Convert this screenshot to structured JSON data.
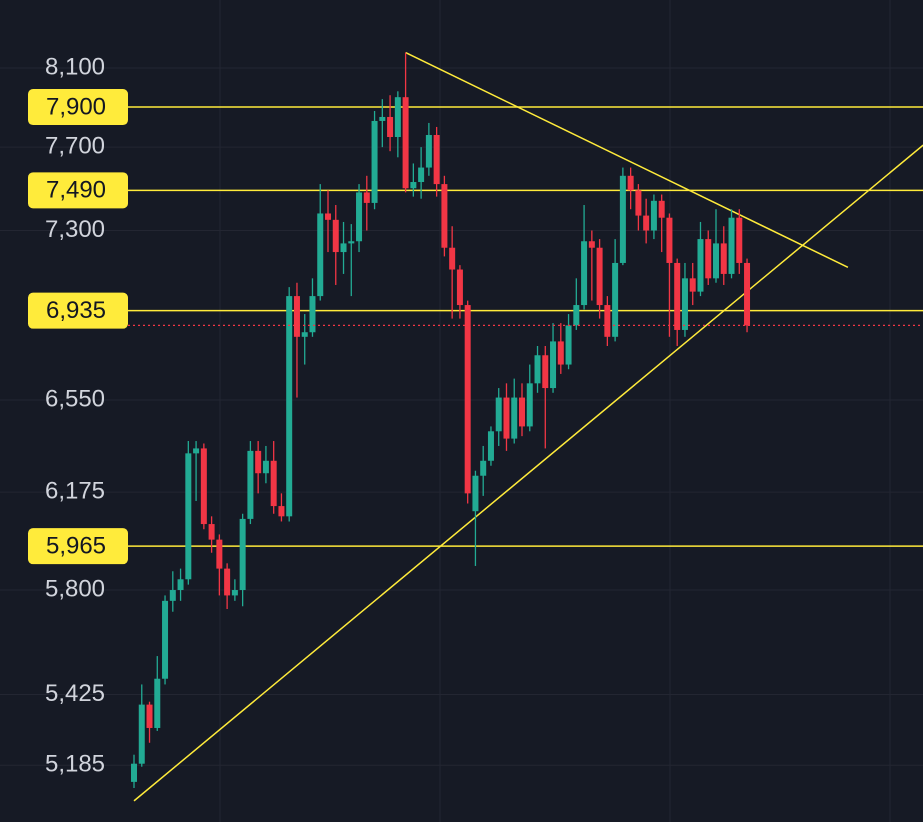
{
  "chart_data": {
    "type": "candlestick",
    "log_scale": true,
    "ylim": [
      5000,
      8460
    ],
    "yticks": [
      {
        "value": 8100,
        "label": "8,100"
      },
      {
        "value": 7700,
        "label": "7,700"
      },
      {
        "value": 7300,
        "label": "7,300"
      },
      {
        "value": 6550,
        "label": "6,550"
      },
      {
        "value": 6175,
        "label": "6,175"
      },
      {
        "value": 5800,
        "label": "5,800"
      },
      {
        "value": 5425,
        "label": "5,425"
      },
      {
        "value": 5185,
        "label": "5,185"
      }
    ],
    "grid": true,
    "up_color": "#22ab94",
    "down_color": "#f23645",
    "level_color": "#ffeb3b",
    "levels": [
      {
        "value": 7900,
        "label": "7,900"
      },
      {
        "value": 7490,
        "label": "7,490"
      },
      {
        "value": 6935,
        "label": "6,935"
      },
      {
        "value": 5965,
        "label": "5,965"
      }
    ],
    "trendlines": [
      {
        "x": [
          35,
          92
        ],
        "y": [
          8180,
          7130
        ]
      },
      {
        "x": [
          0,
          101.7
        ],
        "y": [
          5068,
          7710
        ]
      }
    ],
    "open": [
      5130,
      5190,
      5390,
      5310,
      5480,
      5760,
      5800,
      5840,
      6330,
      6350,
      6050,
      5990,
      5880,
      5780,
      5800,
      6070,
      6340,
      6250,
      6300,
      6120,
      6080,
      7000,
      6820,
      6840,
      7000,
      7380,
      7350,
      7200,
      7240,
      7250,
      7480,
      7430,
      7830,
      7850,
      7750,
      7950,
      7500,
      7530,
      7600,
      7760,
      7520,
      7220,
      7120,
      6960,
      6100,
      6240,
      6300,
      6420,
      6560,
      6390,
      6560,
      6440,
      6620,
      6740,
      6600,
      6800,
      6700,
      6870,
      6960,
      7250,
      7220,
      6960,
      6820,
      7150,
      7560,
      7490,
      7370,
      7300,
      7440,
      7360,
      7150,
      6850,
      7080,
      7020,
      7260,
      7080,
      7240,
      7100,
      7360,
      7150
    ],
    "high": [
      5220,
      5460,
      5400,
      5560,
      5780,
      5870,
      5880,
      6380,
      6380,
      6370,
      6080,
      6010,
      5900,
      5840,
      6090,
      6380,
      6380,
      6360,
      6380,
      6170,
      7040,
      7060,
      6920,
      7080,
      7520,
      7490,
      7420,
      7340,
      7330,
      7520,
      7560,
      7880,
      7940,
      7960,
      7980,
      8180,
      7620,
      7700,
      7820,
      7800,
      7560,
      7320,
      7140,
      6980,
      6260,
      6360,
      6440,
      6600,
      6620,
      6640,
      6620,
      6700,
      6780,
      6780,
      6880,
      6880,
      6920,
      7080,
      7420,
      7300,
      7260,
      7000,
      7260,
      7600,
      7600,
      7520,
      7450,
      7470,
      7470,
      7380,
      7170,
      7150,
      7150,
      7340,
      7300,
      7400,
      7320,
      7400,
      7400,
      7170
    ],
    "low": [
      5110,
      5180,
      5260,
      5300,
      5460,
      5720,
      5760,
      5820,
      6140,
      6030,
      5940,
      5780,
      5730,
      5760,
      5740,
      6050,
      6170,
      6210,
      6090,
      6060,
      6060,
      6560,
      6700,
      6820,
      6980,
      7200,
      7050,
      7100,
      7000,
      7200,
      7300,
      7400,
      7700,
      7680,
      7650,
      7480,
      7460,
      7450,
      7560,
      7460,
      7180,
      6900,
      6900,
      6130,
      5890,
      6160,
      6280,
      6360,
      6340,
      6370,
      6400,
      6420,
      6580,
      6350,
      6580,
      6660,
      6680,
      6850,
      6940,
      6980,
      6900,
      6780,
      6800,
      7140,
      7400,
      7300,
      7240,
      7260,
      7200,
      6820,
      6780,
      6820,
      6960,
      7000,
      7050,
      7060,
      7050,
      7080,
      7100,
      6840
    ],
    "close": [
      5190,
      5390,
      5310,
      5480,
      5760,
      5800,
      5840,
      6330,
      6350,
      6050,
      5990,
      5880,
      5780,
      5800,
      6070,
      6340,
      6250,
      6300,
      6120,
      6080,
      7000,
      6820,
      6840,
      7000,
      7380,
      7350,
      7200,
      7240,
      7250,
      7480,
      7430,
      7830,
      7850,
      7750,
      7950,
      7500,
      7530,
      7600,
      7760,
      7520,
      7220,
      7120,
      6960,
      6170,
      6240,
      6300,
      6420,
      6560,
      6390,
      6560,
      6440,
      6620,
      6740,
      6600,
      6800,
      6700,
      6870,
      6960,
      7250,
      7220,
      6960,
      6820,
      7150,
      7560,
      7490,
      7370,
      7300,
      7440,
      7360,
      7150,
      6850,
      7080,
      7020,
      7260,
      7080,
      7240,
      7100,
      7360,
      7150,
      6870
    ]
  }
}
